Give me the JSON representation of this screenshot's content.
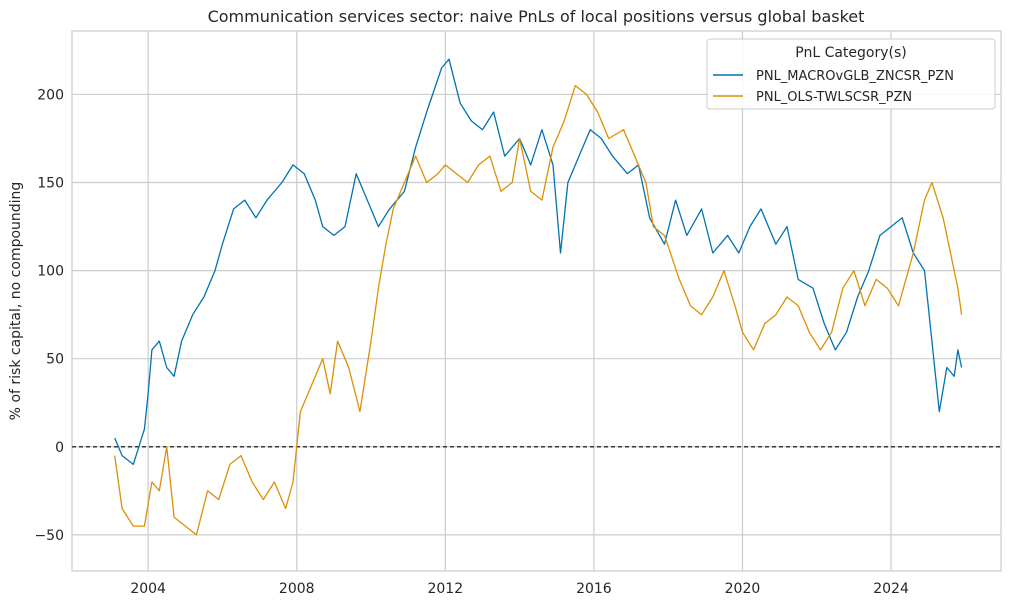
{
  "chart_data": {
    "type": "line",
    "title": "Communication services sector: naive PnLs of local positions versus global basket",
    "xlabel": "",
    "ylabel": "% of risk capital, no compounding",
    "xlim": [
      2001.95,
      2026.96
    ],
    "ylim": [
      -70.5,
      236
    ],
    "xticks": [
      2004,
      2008,
      2012,
      2016,
      2020,
      2024
    ],
    "yticks": [
      -50,
      0,
      50,
      100,
      150,
      200
    ],
    "grid": true,
    "reference_line": {
      "y": 0,
      "style": "dashed",
      "color": "#000000"
    },
    "legend": {
      "title": "PnL Category(s)",
      "placement": "top-right"
    },
    "series": [
      {
        "name": "PNL_MACROvGLB_ZNCSR_PZN",
        "color": "#0173b2",
        "x": [
          2003.1,
          2003.3,
          2003.6,
          2003.9,
          2004.0,
          2004.1,
          2004.3,
          2004.5,
          2004.7,
          2004.9,
          2005.2,
          2005.5,
          2005.8,
          2006.0,
          2006.3,
          2006.6,
          2006.9,
          2007.2,
          2007.6,
          2007.9,
          2008.2,
          2008.5,
          2008.7,
          2009.0,
          2009.3,
          2009.6,
          2009.9,
          2010.2,
          2010.5,
          2010.9,
          2011.2,
          2011.5,
          2011.9,
          2012.1,
          2012.4,
          2012.7,
          2013.0,
          2013.3,
          2013.6,
          2014.0,
          2014.3,
          2014.6,
          2014.9,
          2015.1,
          2015.3,
          2015.6,
          2015.9,
          2016.2,
          2016.5,
          2016.9,
          2017.2,
          2017.5,
          2017.9,
          2018.2,
          2018.5,
          2018.9,
          2019.2,
          2019.6,
          2019.9,
          2020.2,
          2020.5,
          2020.9,
          2021.2,
          2021.5,
          2021.9,
          2022.2,
          2022.5,
          2022.8,
          2023.1,
          2023.4,
          2023.7,
          2024.0,
          2024.3,
          2024.6,
          2024.9,
          2025.1,
          2025.3,
          2025.5,
          2025.7,
          2025.8,
          2025.9
        ],
        "y": [
          5,
          -5,
          -10,
          10,
          30,
          55,
          60,
          45,
          40,
          60,
          75,
          85,
          100,
          115,
          135,
          140,
          130,
          140,
          150,
          160,
          155,
          140,
          125,
          120,
          125,
          155,
          140,
          125,
          135,
          145,
          170,
          190,
          215,
          220,
          195,
          185,
          180,
          190,
          165,
          175,
          160,
          180,
          160,
          110,
          150,
          165,
          180,
          175,
          165,
          155,
          160,
          130,
          115,
          140,
          120,
          135,
          110,
          120,
          110,
          125,
          135,
          115,
          125,
          95,
          90,
          70,
          55,
          65,
          85,
          100,
          120,
          125,
          130,
          110,
          100,
          60,
          20,
          45,
          40,
          55,
          45
        ]
      },
      {
        "name": "PNL_OLS-TWLSCSR_PZN",
        "color": "#de8f05",
        "x": [
          2003.1,
          2003.3,
          2003.6,
          2003.9,
          2004.1,
          2004.3,
          2004.5,
          2004.7,
          2005.0,
          2005.3,
          2005.6,
          2005.9,
          2006.2,
          2006.5,
          2006.8,
          2007.1,
          2007.4,
          2007.7,
          2007.9,
          2008.1,
          2008.4,
          2008.7,
          2008.9,
          2009.1,
          2009.4,
          2009.7,
          2010.0,
          2010.2,
          2010.4,
          2010.6,
          2010.9,
          2011.2,
          2011.5,
          2011.8,
          2012.0,
          2012.3,
          2012.6,
          2012.9,
          2013.2,
          2013.5,
          2013.8,
          2014.0,
          2014.3,
          2014.6,
          2014.9,
          2015.2,
          2015.5,
          2015.8,
          2016.1,
          2016.4,
          2016.8,
          2017.1,
          2017.4,
          2017.6,
          2017.9,
          2018.3,
          2018.6,
          2018.9,
          2019.2,
          2019.5,
          2019.8,
          2020.0,
          2020.3,
          2020.6,
          2020.9,
          2021.2,
          2021.5,
          2021.8,
          2022.1,
          2022.4,
          2022.7,
          2023.0,
          2023.3,
          2023.6,
          2023.9,
          2024.2,
          2024.6,
          2024.9,
          2025.1,
          2025.4,
          2025.6,
          2025.8,
          2025.9
        ],
        "y": [
          -5,
          -35,
          -45,
          -45,
          -20,
          -25,
          0,
          -40,
          -45,
          -50,
          -25,
          -30,
          -10,
          -5,
          -20,
          -30,
          -20,
          -35,
          -20,
          20,
          35,
          50,
          30,
          60,
          45,
          20,
          60,
          90,
          115,
          135,
          150,
          165,
          150,
          155,
          160,
          155,
          150,
          160,
          165,
          145,
          150,
          175,
          145,
          140,
          170,
          185,
          205,
          200,
          190,
          175,
          180,
          165,
          150,
          125,
          120,
          95,
          80,
          75,
          85,
          100,
          80,
          65,
          55,
          70,
          75,
          85,
          80,
          65,
          55,
          65,
          90,
          100,
          80,
          95,
          90,
          80,
          110,
          140,
          150,
          130,
          110,
          90,
          75
        ]
      }
    ]
  }
}
